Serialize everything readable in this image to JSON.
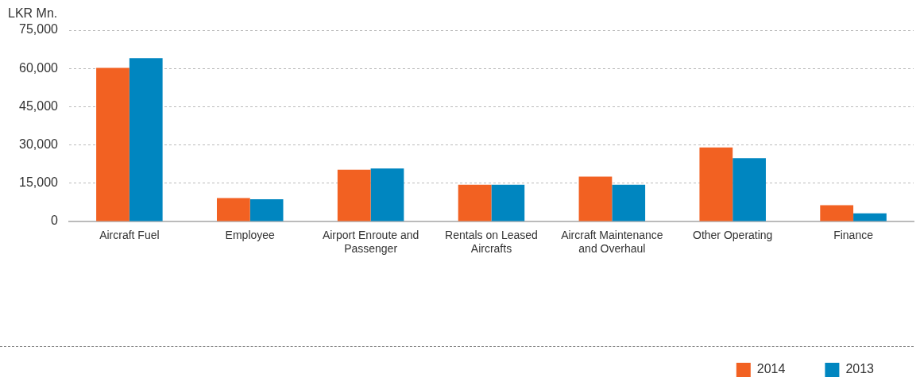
{
  "chart_data": {
    "type": "bar",
    "ylabel": "LKR Mn.",
    "categories": [
      "Aircraft Fuel",
      "Employee",
      "Airport Enroute and Passenger",
      "Rentals on Leased Aircrafts",
      "Aircraft Maintenance and Overhaul",
      "Other Operating",
      "Finance"
    ],
    "series": [
      {
        "name": "2014",
        "color": "#f26122",
        "values": [
          60200,
          9200,
          20300,
          14400,
          17600,
          29000,
          6400
        ]
      },
      {
        "name": "2013",
        "color": "#0086c0",
        "values": [
          64000,
          8700,
          20800,
          14400,
          14400,
          24800,
          3200
        ]
      }
    ],
    "ylim": [
      0,
      75000
    ],
    "yticks": [
      {
        "value": 0,
        "label": "0"
      },
      {
        "value": 15000,
        "label": "15,000"
      },
      {
        "value": 30000,
        "label": "30,000"
      },
      {
        "value": 45000,
        "label": "45,000"
      },
      {
        "value": 60000,
        "label": "60,000"
      },
      {
        "value": 75000,
        "label": "75,000"
      }
    ],
    "grid": "y",
    "legend": "bottom right"
  }
}
